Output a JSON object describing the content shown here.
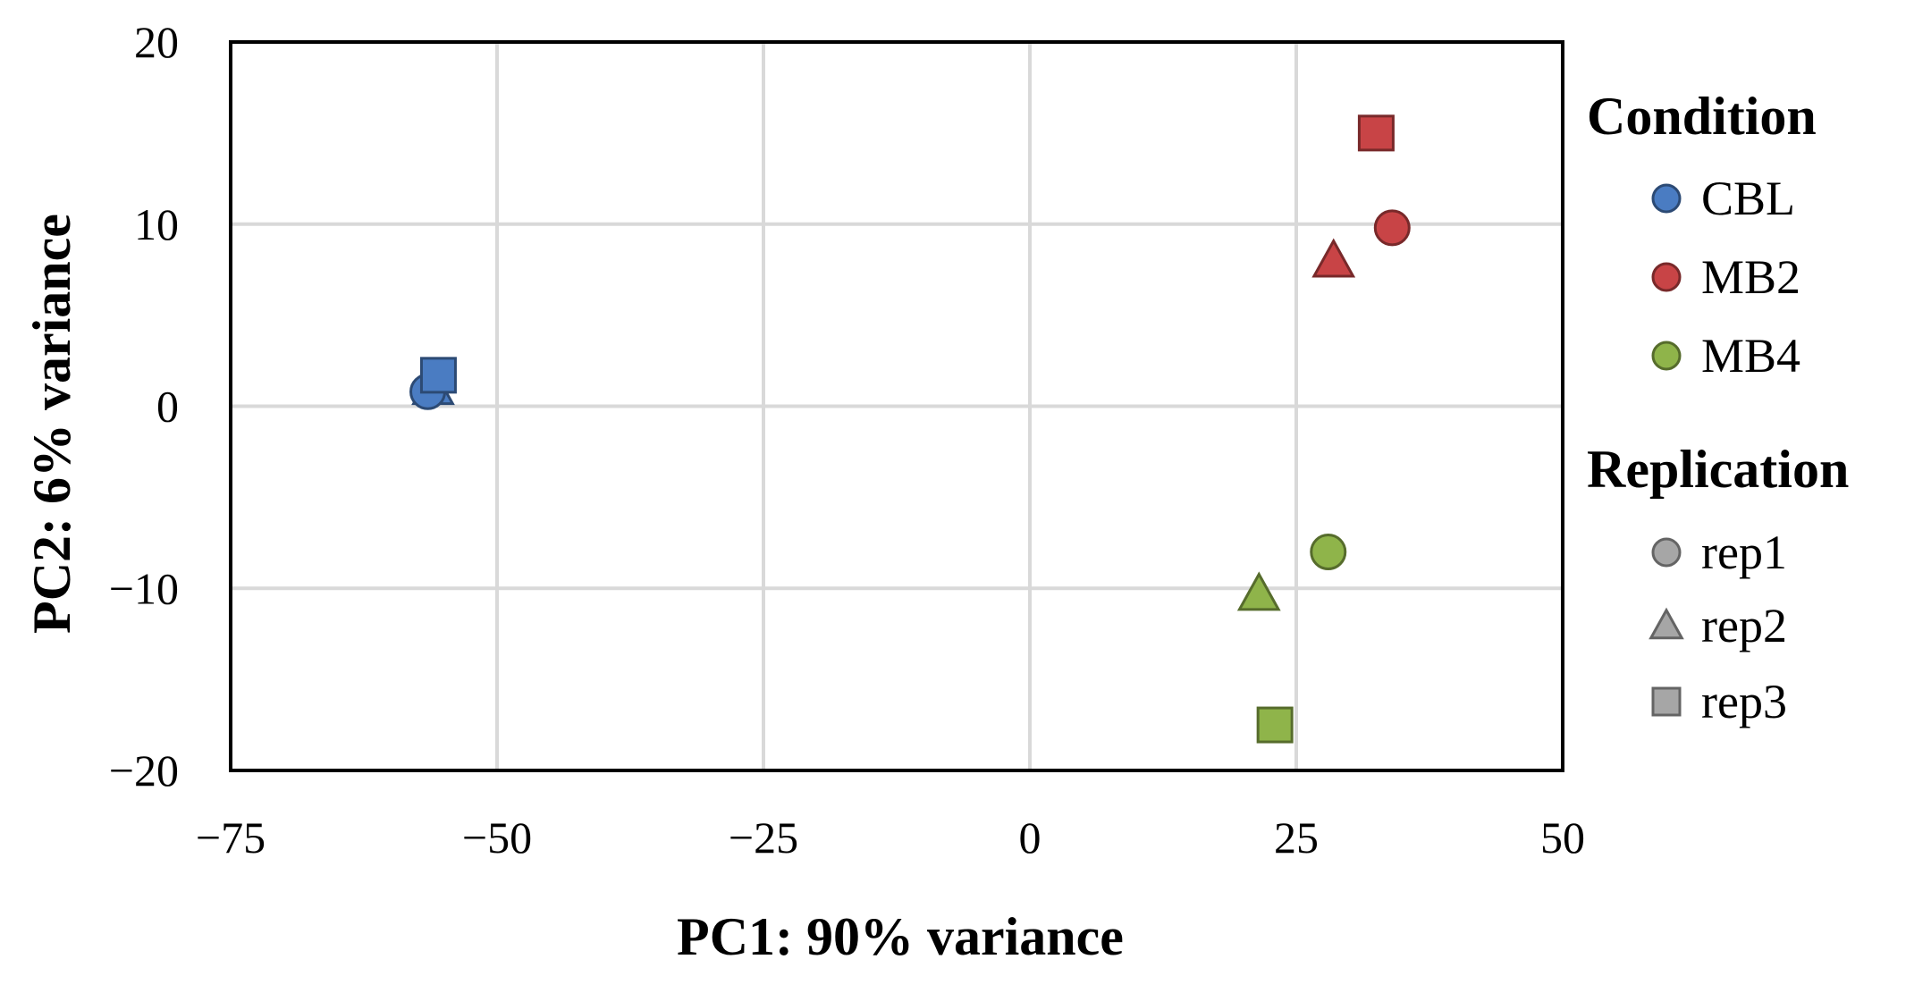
{
  "chart_data": {
    "type": "scatter",
    "xlabel": "PC1: 90% variance",
    "ylabel": "PC2: 6% variance",
    "xlim": [
      -75,
      50
    ],
    "ylim": [
      -20,
      20
    ],
    "xticks": [
      -75,
      -50,
      -25,
      0,
      25,
      50
    ],
    "yticks": [
      -20,
      -10,
      0,
      10,
      20
    ],
    "xtick_labels": [
      "−75",
      "−50",
      "−25",
      "0",
      "25",
      "50"
    ],
    "ytick_labels": [
      "−20",
      "−10",
      "0",
      "10",
      "20"
    ],
    "grid": true,
    "legend_position": "right",
    "legend": {
      "condition_title": "Condition",
      "replication_title": "Replication",
      "conditions": [
        {
          "label": "CBL",
          "color": "#4a7cc2"
        },
        {
          "label": "MB2",
          "color": "#c84446"
        },
        {
          "label": "MB4",
          "color": "#8fb44a"
        }
      ],
      "replications": [
        {
          "label": "rep1",
          "marker": "circle"
        },
        {
          "label": "rep2",
          "marker": "triangle"
        },
        {
          "label": "rep3",
          "marker": "square"
        }
      ]
    },
    "series": [
      {
        "condition": "CBL",
        "replication": "rep2",
        "x": -56,
        "y": 1.0
      },
      {
        "condition": "CBL",
        "replication": "rep1",
        "x": -56.5,
        "y": 0.8
      },
      {
        "condition": "CBL",
        "replication": "rep3",
        "x": -55.5,
        "y": 1.7
      },
      {
        "condition": "MB2",
        "replication": "rep3",
        "x": 32.5,
        "y": 15.0
      },
      {
        "condition": "MB2",
        "replication": "rep1",
        "x": 34,
        "y": 9.8
      },
      {
        "condition": "MB2",
        "replication": "rep2",
        "x": 28.5,
        "y": 8.0
      },
      {
        "condition": "MB4",
        "replication": "rep1",
        "x": 28,
        "y": -8.0
      },
      {
        "condition": "MB4",
        "replication": "rep2",
        "x": 21.5,
        "y": -10.3
      },
      {
        "condition": "MB4",
        "replication": "rep3",
        "x": 23,
        "y": -17.5
      }
    ]
  }
}
